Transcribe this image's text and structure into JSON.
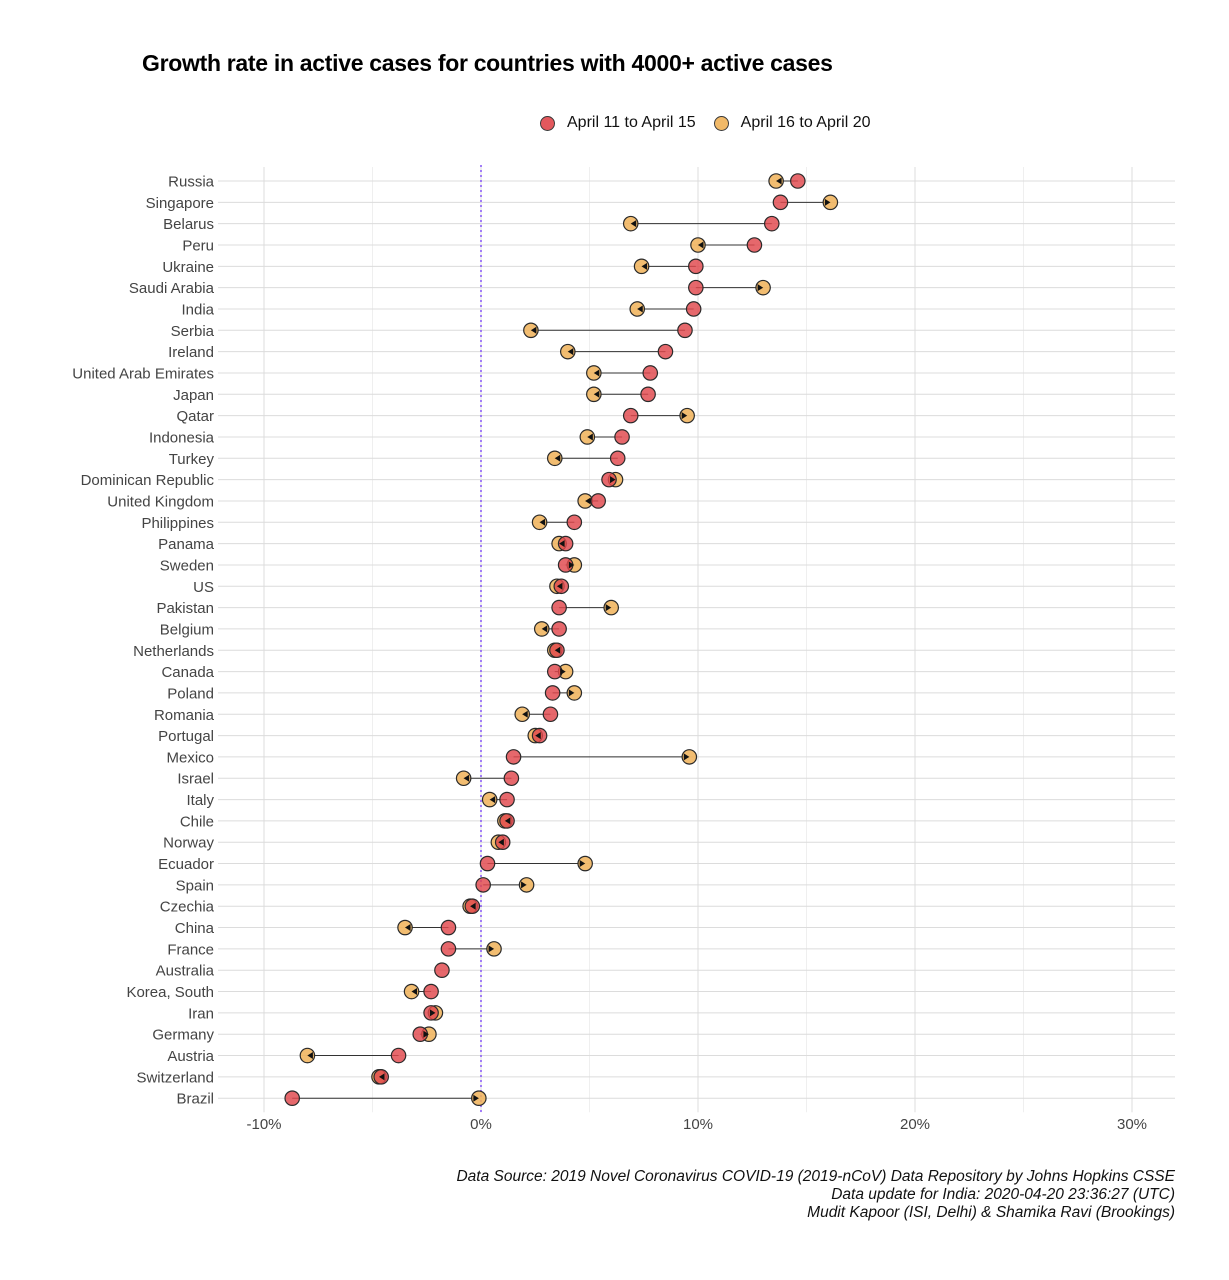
{
  "chart_data": {
    "type": "dumbbell",
    "title": "Growth rate in active cases for countries with 4000+ active cases",
    "legend": {
      "position": "top",
      "entries": [
        {
          "name": "April 11 to April 15",
          "color": "#e0474c"
        },
        {
          "name": "April 16 to April 20",
          "color": "#f0b258"
        }
      ]
    },
    "x_ticks": [
      {
        "value": -10,
        "label": "-10%"
      },
      {
        "value": 0,
        "label": "0%"
      },
      {
        "value": 10,
        "label": "10%"
      },
      {
        "value": 20,
        "label": "20%"
      },
      {
        "value": 30,
        "label": "30%"
      }
    ],
    "xlim": [
      -12.2,
      32
    ],
    "reference_line": {
      "value": 0,
      "color": "#8a5cf6",
      "style": "dotted"
    },
    "grid": true,
    "rows": [
      {
        "country": "Russia",
        "apr11_15": 14.6,
        "apr16_20": 13.6
      },
      {
        "country": "Singapore",
        "apr11_15": 13.8,
        "apr16_20": 16.1
      },
      {
        "country": "Belarus",
        "apr11_15": 13.4,
        "apr16_20": 6.9
      },
      {
        "country": "Peru",
        "apr11_15": 12.6,
        "apr16_20": 10.0
      },
      {
        "country": "Ukraine",
        "apr11_15": 9.9,
        "apr16_20": 7.4
      },
      {
        "country": "Saudi Arabia",
        "apr11_15": 9.9,
        "apr16_20": 13.0
      },
      {
        "country": "India",
        "apr11_15": 9.8,
        "apr16_20": 7.2
      },
      {
        "country": "Serbia",
        "apr11_15": 9.4,
        "apr16_20": 2.3
      },
      {
        "country": "Ireland",
        "apr11_15": 8.5,
        "apr16_20": 4.0
      },
      {
        "country": "United Arab Emirates",
        "apr11_15": 7.8,
        "apr16_20": 5.2
      },
      {
        "country": "Japan",
        "apr11_15": 7.7,
        "apr16_20": 5.2
      },
      {
        "country": "Qatar",
        "apr11_15": 6.9,
        "apr16_20": 9.5
      },
      {
        "country": "Indonesia",
        "apr11_15": 6.5,
        "apr16_20": 4.9
      },
      {
        "country": "Turkey",
        "apr11_15": 6.3,
        "apr16_20": 3.4
      },
      {
        "country": "Dominican Republic",
        "apr11_15": 5.9,
        "apr16_20": 6.2
      },
      {
        "country": "United Kingdom",
        "apr11_15": 5.4,
        "apr16_20": 4.8
      },
      {
        "country": "Philippines",
        "apr11_15": 4.3,
        "apr16_20": 2.7
      },
      {
        "country": "Panama",
        "apr11_15": 3.9,
        "apr16_20": 3.6
      },
      {
        "country": "Sweden",
        "apr11_15": 3.9,
        "apr16_20": 4.3
      },
      {
        "country": "US",
        "apr11_15": 3.7,
        "apr16_20": 3.5
      },
      {
        "country": "Pakistan",
        "apr11_15": 3.6,
        "apr16_20": 6.0
      },
      {
        "country": "Belgium",
        "apr11_15": 3.6,
        "apr16_20": 2.8
      },
      {
        "country": "Netherlands",
        "apr11_15": 3.5,
        "apr16_20": 3.4
      },
      {
        "country": "Canada",
        "apr11_15": 3.4,
        "apr16_20": 3.9
      },
      {
        "country": "Poland",
        "apr11_15": 3.3,
        "apr16_20": 4.3
      },
      {
        "country": "Romania",
        "apr11_15": 3.2,
        "apr16_20": 1.9
      },
      {
        "country": "Portugal",
        "apr11_15": 2.7,
        "apr16_20": 2.5
      },
      {
        "country": "Mexico",
        "apr11_15": 1.5,
        "apr16_20": 9.6
      },
      {
        "country": "Israel",
        "apr11_15": 1.4,
        "apr16_20": -0.8
      },
      {
        "country": "Italy",
        "apr11_15": 1.2,
        "apr16_20": 0.4
      },
      {
        "country": "Chile",
        "apr11_15": 1.2,
        "apr16_20": 1.1
      },
      {
        "country": "Norway",
        "apr11_15": 1.0,
        "apr16_20": 0.8
      },
      {
        "country": "Ecuador",
        "apr11_15": 0.3,
        "apr16_20": 4.8
      },
      {
        "country": "Spain",
        "apr11_15": 0.1,
        "apr16_20": 2.1
      },
      {
        "country": "Czechia",
        "apr11_15": -0.4,
        "apr16_20": -0.5
      },
      {
        "country": "China",
        "apr11_15": -1.5,
        "apr16_20": -3.5
      },
      {
        "country": "France",
        "apr11_15": -1.5,
        "apr16_20": 0.6
      },
      {
        "country": "Australia",
        "apr11_15": -1.8,
        "apr16_20": null
      },
      {
        "country": "Korea, South",
        "apr11_15": -2.3,
        "apr16_20": -3.2
      },
      {
        "country": "Iran",
        "apr11_15": -2.3,
        "apr16_20": -2.1
      },
      {
        "country": "Germany",
        "apr11_15": -2.8,
        "apr16_20": -2.4
      },
      {
        "country": "Austria",
        "apr11_15": -3.8,
        "apr16_20": -8.0
      },
      {
        "country": "Switzerland",
        "apr11_15": -4.6,
        "apr16_20": -4.7
      },
      {
        "country": "Brazil",
        "apr11_15": -8.7,
        "apr16_20": -0.1
      }
    ]
  },
  "caption": {
    "line1": "Data Source: 2019 Novel Coronavirus COVID-19 (2019-nCoV) Data Repository by Johns Hopkins CSSE",
    "line2": "Data update for India: 2020-04-20 23:36:27 (UTC)",
    "line3": "Mudit Kapoor (ISI, Delhi) & Shamika Ravi (Brookings)"
  }
}
